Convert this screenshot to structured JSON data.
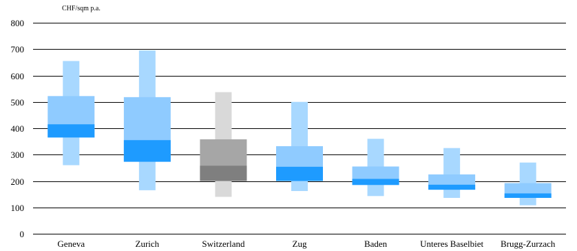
{
  "chart_data": {
    "type": "bar",
    "ylabel": "CHF/sqm p.a.",
    "ylim": [
      0,
      800
    ],
    "yticks": [
      0,
      100,
      200,
      300,
      400,
      500,
      600,
      700,
      800
    ],
    "grid": true,
    "categories": [
      {
        "name": "Geneva",
        "whisker_low": 260,
        "box_low": 365,
        "median_low": 365,
        "median_high": 415,
        "box_high": 522,
        "whisker_high": 655,
        "palette": "blue"
      },
      {
        "name": "Zurich",
        "whisker_low": 165,
        "box_low": 273,
        "median_low": 273,
        "median_high": 355,
        "box_high": 518,
        "whisker_high": 695,
        "palette": "blue"
      },
      {
        "name": "Switzerland",
        "whisker_low": 140,
        "box_low": 200,
        "median_low": 200,
        "median_high": 258,
        "box_high": 358,
        "whisker_high": 537,
        "palette": "gray"
      },
      {
        "name": "Zug",
        "whisker_low": 162,
        "box_low": 200,
        "median_low": 200,
        "median_high": 254,
        "box_high": 332,
        "whisker_high": 500,
        "palette": "blue"
      },
      {
        "name": "Baden",
        "whisker_low": 143,
        "box_low": 185,
        "median_low": 185,
        "median_high": 208,
        "box_high": 255,
        "whisker_high": 360,
        "palette": "blue"
      },
      {
        "name": "Unteres Baselbiet",
        "whisker_low": 136,
        "box_low": 167,
        "median_low": 167,
        "median_high": 186,
        "box_high": 225,
        "whisker_high": 325,
        "palette": "blue"
      },
      {
        "name": "Brugg-Zurzach",
        "whisker_low": 108,
        "box_low": 136,
        "median_low": 136,
        "median_high": 153,
        "box_high": 192,
        "whisker_high": 270,
        "palette": "blue"
      }
    ],
    "colors": {
      "blue": {
        "whisker": "#a8d8ff",
        "box": "#8fcbff",
        "median": "#1e9bff"
      },
      "gray": {
        "whisker": "#d9d9d9",
        "box": "#a6a6a6",
        "median": "#7f7f7f"
      },
      "grid": "#000000"
    }
  }
}
